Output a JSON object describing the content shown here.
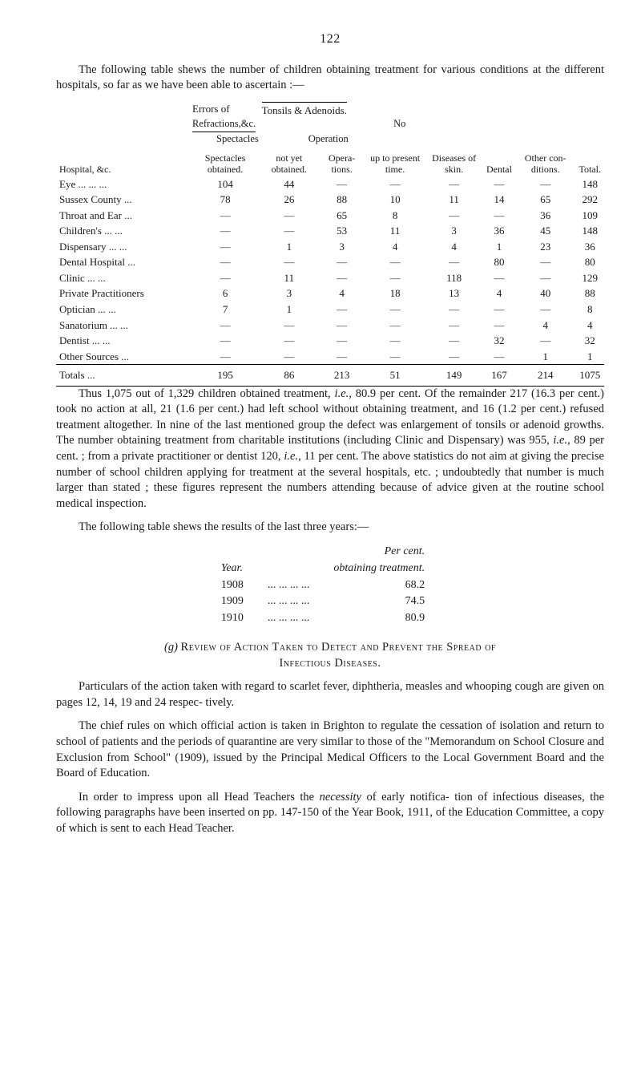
{
  "page_number": "122",
  "intro": "The following table shews the number of children obtaining treatment for various conditions at the different hospitals, so far as we have been able to ascertain :—",
  "t1": {
    "super_headers": {
      "errors_of": "Errors of",
      "tonsils": "Tonsils & Adenoids.",
      "refractions": "Refractions,&c.",
      "no": "No",
      "spectacles": "Spectacles",
      "operation": "Operation"
    },
    "col_headers": [
      "Hospital, &c.",
      "Spectacles obtained.",
      "not yet obtained.",
      "Opera- tions.",
      "up to present time.",
      "Diseases of skin.",
      "Dental",
      "Other con- ditions.",
      "Total."
    ],
    "rows": [
      {
        "label": "Eye ...   ...   ...",
        "cells": [
          "104",
          "44",
          "—",
          "—",
          "—",
          "—",
          "—",
          "148"
        ]
      },
      {
        "label": "Sussex County   ...",
        "cells": [
          "78",
          "26",
          "88",
          "10",
          "11",
          "14",
          "65",
          "292"
        ]
      },
      {
        "label": "Throat and Ear   ...",
        "cells": [
          "—",
          "—",
          "65",
          "8",
          "—",
          "—",
          "36",
          "109"
        ]
      },
      {
        "label": "Children's   ...   ...",
        "cells": [
          "—",
          "—",
          "53",
          "11",
          "3",
          "36",
          "45",
          "148"
        ]
      },
      {
        "label": "Dispensary ...   ...",
        "cells": [
          "—",
          "1",
          "3",
          "4",
          "4",
          "1",
          "23",
          "36"
        ]
      },
      {
        "label": "Dental Hospital   ...",
        "cells": [
          "—",
          "—",
          "—",
          "—",
          "—",
          "80",
          "—",
          "80"
        ]
      },
      {
        "label": "Clinic   ...   ...",
        "cells": [
          "—",
          "11",
          "—",
          "—",
          "118",
          "—",
          "—",
          "129"
        ]
      },
      {
        "label": "Private Practitioners",
        "cells": [
          "6",
          "3",
          "4",
          "18",
          "13",
          "4",
          "40",
          "88"
        ]
      },
      {
        "label": "Optician   ...   ...",
        "cells": [
          "7",
          "1",
          "—",
          "—",
          "—",
          "—",
          "—",
          "8"
        ]
      },
      {
        "label": "Sanatorium ...   ...",
        "cells": [
          "—",
          "—",
          "—",
          "—",
          "—",
          "—",
          "4",
          "4"
        ]
      },
      {
        "label": "Dentist   ...   ...",
        "cells": [
          "—",
          "—",
          "—",
          "—",
          "—",
          "32",
          "—",
          "32"
        ]
      },
      {
        "label": "Other Sources   ...",
        "cells": [
          "—",
          "—",
          "—",
          "—",
          "—",
          "—",
          "1",
          "1"
        ]
      }
    ],
    "totals": {
      "label": "Totals   ...",
      "cells": [
        "195",
        "86",
        "213",
        "51",
        "149",
        "167",
        "214",
        "1075"
      ]
    }
  },
  "para_after_t1_a": "Thus 1,075 out of 1,329 children obtained treatment, ",
  "para_after_t1_b": "i.e.",
  "para_after_t1_c": ", 80.9 per cent. Of the remainder 217 (16.3 per cent.) took no action at all, 21 (1.6 per cent.) had left school without obtaining treatment, and 16 (1.2 per cent.) refused treatment altogether.   In nine of the last mentioned group the defect was enlargement of tonsils or adenoid growths.   The number obtaining treatment from charitable institutions (including Clinic and Dispensary) was 955, ",
  "para_after_t1_d": "i.e.",
  "para_after_t1_e": ", 89 per cent. ; from a private practitioner or dentist 120, ",
  "para_after_t1_f": "i.e.",
  "para_after_t1_g": ", 11 per cent. The above statistics do not aim at giving the precise number of school children applying for treatment at the several hospitals, etc. ; undoubtedly that number is much larger than stated ; these figures represent the numbers attending because of advice given at the routine school medical inspection.",
  "t2_intro": "The following table shews the results of the last three years:—",
  "t2": {
    "hdr_percent": "Per cent.",
    "hdr_year": "Year.",
    "hdr_obtain": "obtaining treatment.",
    "rows": [
      {
        "year": "1908",
        "dots": "...    ...    ...    ...",
        "val": "68.2"
      },
      {
        "year": "1909",
        "dots": "...    ...    ...    ...",
        "val": "74.5"
      },
      {
        "year": "1910",
        "dots": "...    ...    ...    ...",
        "val": "80.9"
      }
    ]
  },
  "section_g": {
    "prefix": "(g) ",
    "title_a": "Review of Action Taken to Detect and Prevent the Spread of",
    "title_b": "Infectious Diseases."
  },
  "para_g1": "Particulars of the action taken with regard to scarlet fever, diphtheria, measles and whooping cough are given on pages 12, 14, 19 and 24 respec- tively.",
  "para_g2": "The chief rules on which official action is taken in Brighton to regulate the cessation of isolation and return to school of patients and the periods of quarantine are very similar to those of the \"Memorandum on School Closure and Exclusion from School\" (1909), issued by the Principal Medical Officers to the Local Government Board and the Board of Education.",
  "para_g3_a": "In order to impress upon all Head Teachers the ",
  "para_g3_b": "necessity",
  "para_g3_c": " of early notifica- tion of infectious diseases, the following paragraphs have been inserted on pp. 147-150 of the Year Book, 1911, of the Education Committee, a copy of which is sent to each Head Teacher."
}
